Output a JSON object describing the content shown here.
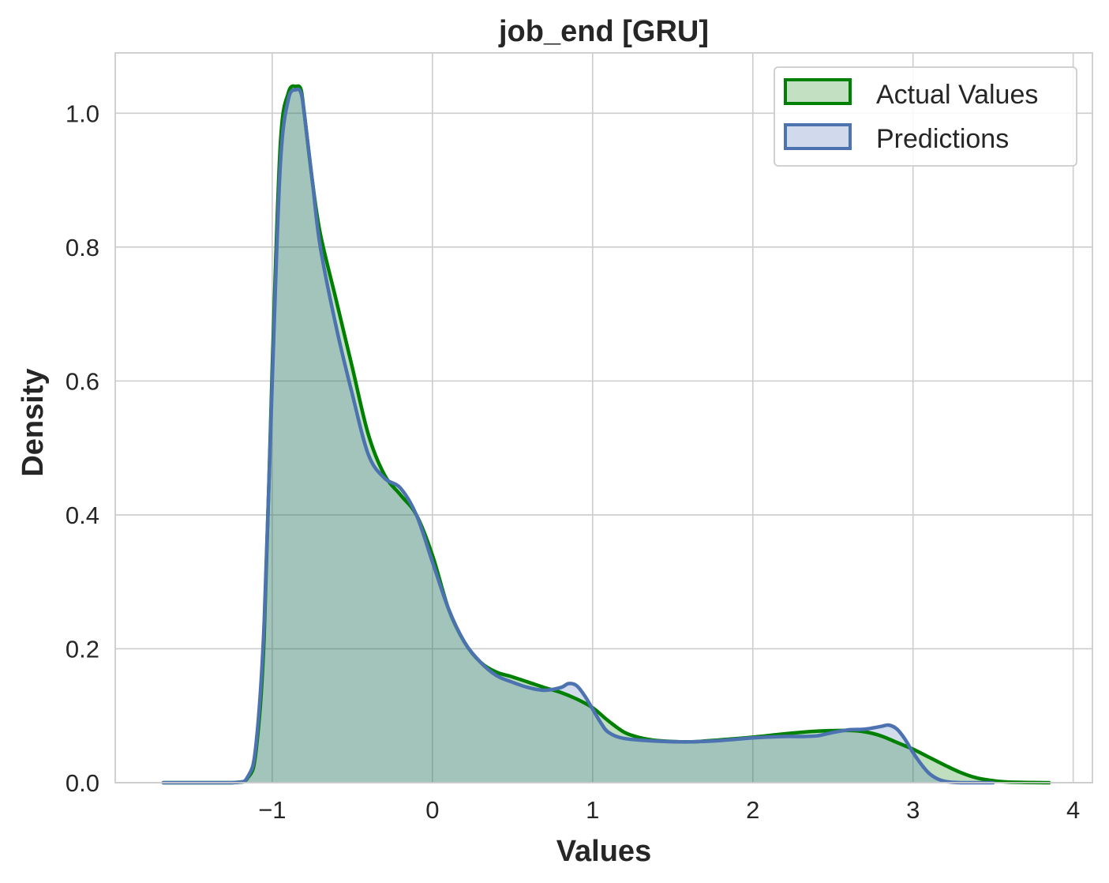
{
  "chart_data": {
    "type": "area",
    "title": "job_end [GRU]",
    "xlabel": "Values",
    "ylabel": "Density",
    "xlim": [
      -1.98,
      4.12
    ],
    "ylim": [
      0.0,
      1.09
    ],
    "x_ticks": [
      -1,
      0,
      1,
      2,
      3,
      4
    ],
    "x_tick_labels": [
      "−1",
      "0",
      "1",
      "2",
      "3",
      "4"
    ],
    "y_ticks": [
      0.0,
      0.2,
      0.4,
      0.6,
      0.8,
      1.0
    ],
    "y_tick_labels": [
      "0.0",
      "0.2",
      "0.4",
      "0.6",
      "0.8",
      "1.0"
    ],
    "grid": true,
    "legend_position": "top-right",
    "series": [
      {
        "name": "Actual Values",
        "line_color": "#008000",
        "fill_color": "#c3e0c3",
        "x": [
          -1.68,
          -1.25,
          -1.15,
          -1.1,
          -1.05,
          -1.0,
          -0.95,
          -0.9,
          -0.85,
          -0.82,
          -0.8,
          -0.75,
          -0.7,
          -0.6,
          -0.5,
          -0.4,
          -0.3,
          -0.2,
          -0.1,
          0.0,
          0.1,
          0.2,
          0.3,
          0.4,
          0.5,
          0.6,
          0.7,
          0.8,
          0.9,
          1.0,
          1.1,
          1.2,
          1.3,
          1.4,
          1.6,
          1.8,
          2.0,
          2.2,
          2.4,
          2.6,
          2.7,
          2.8,
          2.9,
          3.0,
          3.1,
          3.2,
          3.3,
          3.4,
          3.5,
          3.6,
          3.85
        ],
        "y": [
          0.0,
          0.0,
          0.008,
          0.05,
          0.22,
          0.62,
          0.95,
          1.03,
          1.04,
          1.035,
          1.0,
          0.9,
          0.82,
          0.72,
          0.62,
          0.52,
          0.46,
          0.43,
          0.4,
          0.34,
          0.26,
          0.21,
          0.18,
          0.165,
          0.158,
          0.15,
          0.142,
          0.135,
          0.125,
          0.112,
          0.092,
          0.075,
          0.067,
          0.063,
          0.061,
          0.064,
          0.068,
          0.073,
          0.077,
          0.078,
          0.076,
          0.07,
          0.06,
          0.05,
          0.038,
          0.026,
          0.015,
          0.007,
          0.003,
          0.001,
          0.0
        ]
      },
      {
        "name": "Predictions",
        "line_color": "#4c72b0",
        "fill_color": "#d1daed",
        "x": [
          -1.68,
          -1.25,
          -1.15,
          -1.1,
          -1.05,
          -1.0,
          -0.95,
          -0.9,
          -0.85,
          -0.82,
          -0.8,
          -0.75,
          -0.7,
          -0.6,
          -0.5,
          -0.4,
          -0.3,
          -0.2,
          -0.1,
          0.0,
          0.1,
          0.2,
          0.3,
          0.4,
          0.5,
          0.6,
          0.7,
          0.8,
          0.85,
          0.9,
          0.95,
          1.0,
          1.05,
          1.1,
          1.2,
          1.4,
          1.6,
          1.8,
          2.0,
          2.2,
          2.3,
          2.4,
          2.5,
          2.6,
          2.7,
          2.8,
          2.85,
          2.9,
          2.95,
          3.0,
          3.05,
          3.1,
          3.15,
          3.2,
          3.3,
          3.5
        ],
        "y": [
          0.0,
          0.0,
          0.01,
          0.06,
          0.24,
          0.6,
          0.92,
          1.02,
          1.035,
          1.03,
          1.0,
          0.9,
          0.8,
          0.68,
          0.58,
          0.49,
          0.455,
          0.44,
          0.4,
          0.33,
          0.26,
          0.21,
          0.18,
          0.16,
          0.15,
          0.142,
          0.138,
          0.142,
          0.148,
          0.145,
          0.13,
          0.11,
          0.09,
          0.075,
          0.066,
          0.062,
          0.061,
          0.063,
          0.067,
          0.069,
          0.069,
          0.07,
          0.075,
          0.079,
          0.08,
          0.084,
          0.086,
          0.08,
          0.065,
          0.045,
          0.028,
          0.014,
          0.006,
          0.002,
          0.0,
          0.0
        ]
      }
    ]
  }
}
